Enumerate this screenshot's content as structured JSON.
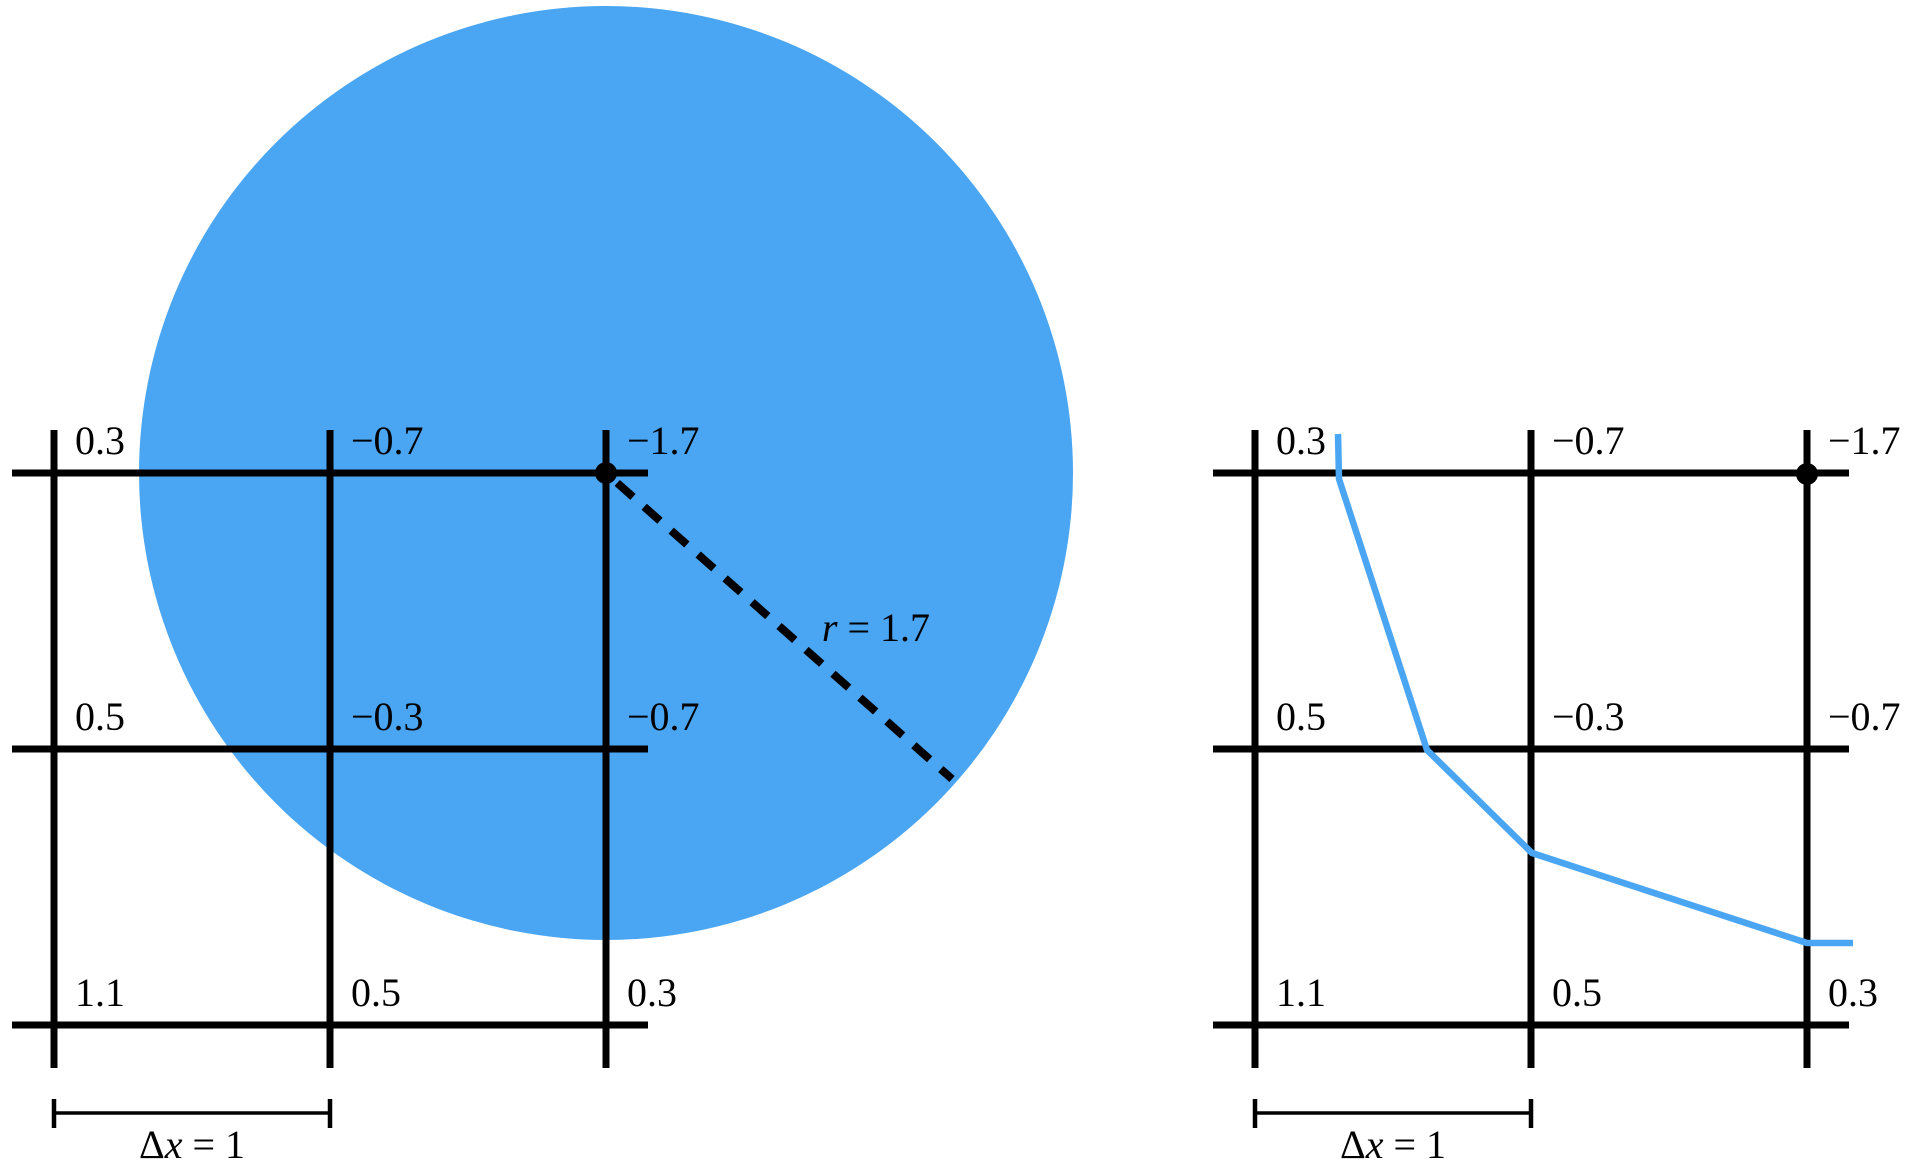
{
  "colors": {
    "fluid_blue": "#4AA6F2",
    "ink": "#000000",
    "background": "#FFFFFF"
  },
  "left_panel": {
    "grid_values": [
      [
        "0.3",
        "−0.7",
        "−1.7"
      ],
      [
        "0.5",
        "−0.3",
        "−0.7"
      ],
      [
        "1.1",
        "0.5",
        "0.3"
      ]
    ],
    "radius_label": {
      "variable": "r",
      "rest": " = 1.7"
    },
    "dx_label": {
      "delta": "Δ",
      "variable": "x",
      "rest": " = 1"
    }
  },
  "right_panel": {
    "grid_values": [
      [
        "0.3",
        "−0.7",
        "−1.7"
      ],
      [
        "0.5",
        "−0.3",
        "−0.7"
      ],
      [
        "1.1",
        "0.5",
        "0.3"
      ]
    ],
    "dx_label": {
      "delta": "Δ",
      "variable": "x",
      "rest": " = 1"
    }
  },
  "chart_data": {
    "type": "heatmap",
    "title": "",
    "grid_signed_distance_values": [
      [
        0.3,
        -0.7,
        -1.7
      ],
      [
        0.5,
        -0.3,
        -0.7
      ],
      [
        1.1,
        0.5,
        0.3
      ]
    ],
    "circle_radius": 1.7,
    "grid_spacing": 1
  }
}
